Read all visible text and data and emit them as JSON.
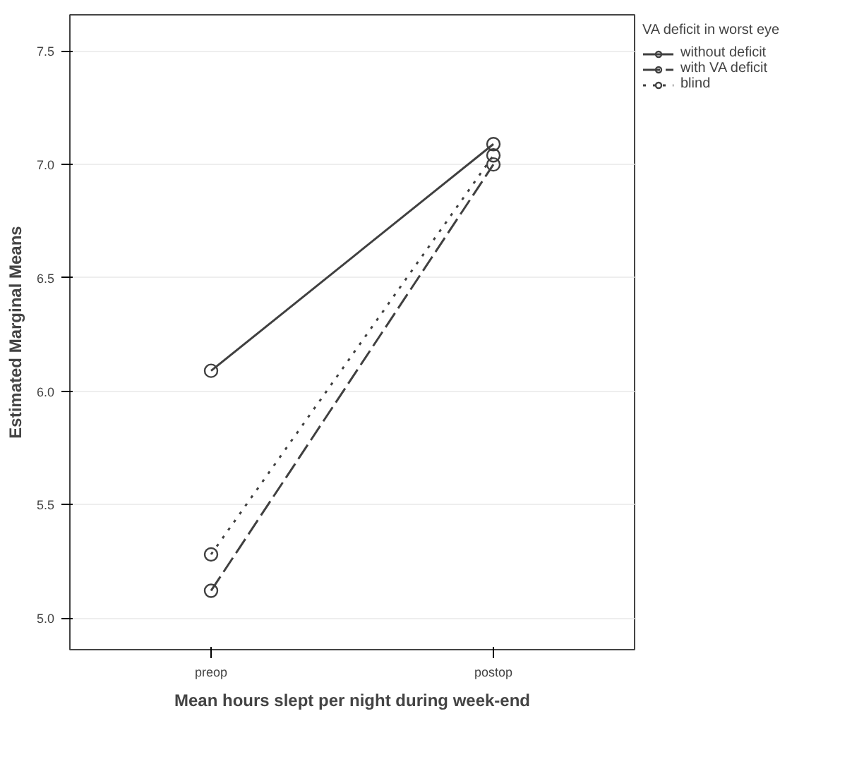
{
  "chart_data": {
    "type": "line",
    "xlabel": "Mean hours slept per night during week-end",
    "ylabel": "Estimated Marginal Means",
    "legend_title": "VA deficit in worst eye",
    "categories": [
      "preop",
      "postop"
    ],
    "series": [
      {
        "name": "without deficit",
        "color": "#404040",
        "values": [
          6.09,
          7.09
        ],
        "line_style": "solid"
      },
      {
        "name": "with VA deficit",
        "color": "#404040",
        "values": [
          5.12,
          7.0
        ],
        "line_style": "dashed"
      },
      {
        "name": "blind",
        "color": "#404040",
        "values": [
          5.28,
          7.04
        ],
        "line_style": "dotted"
      }
    ],
    "ylim": [
      4.86,
      7.66
    ],
    "yticks": [
      {
        "value": 5.0,
        "label": "5.0"
      },
      {
        "value": 5.5,
        "label": "5.5"
      },
      {
        "value": 6.0,
        "label": "6.0"
      },
      {
        "value": 6.5,
        "label": "6.5"
      },
      {
        "value": 7.0,
        "label": "7.0"
      },
      {
        "value": 7.5,
        "label": "7.5"
      }
    ],
    "grid": "y",
    "legend": "top right",
    "marker": "circle"
  }
}
